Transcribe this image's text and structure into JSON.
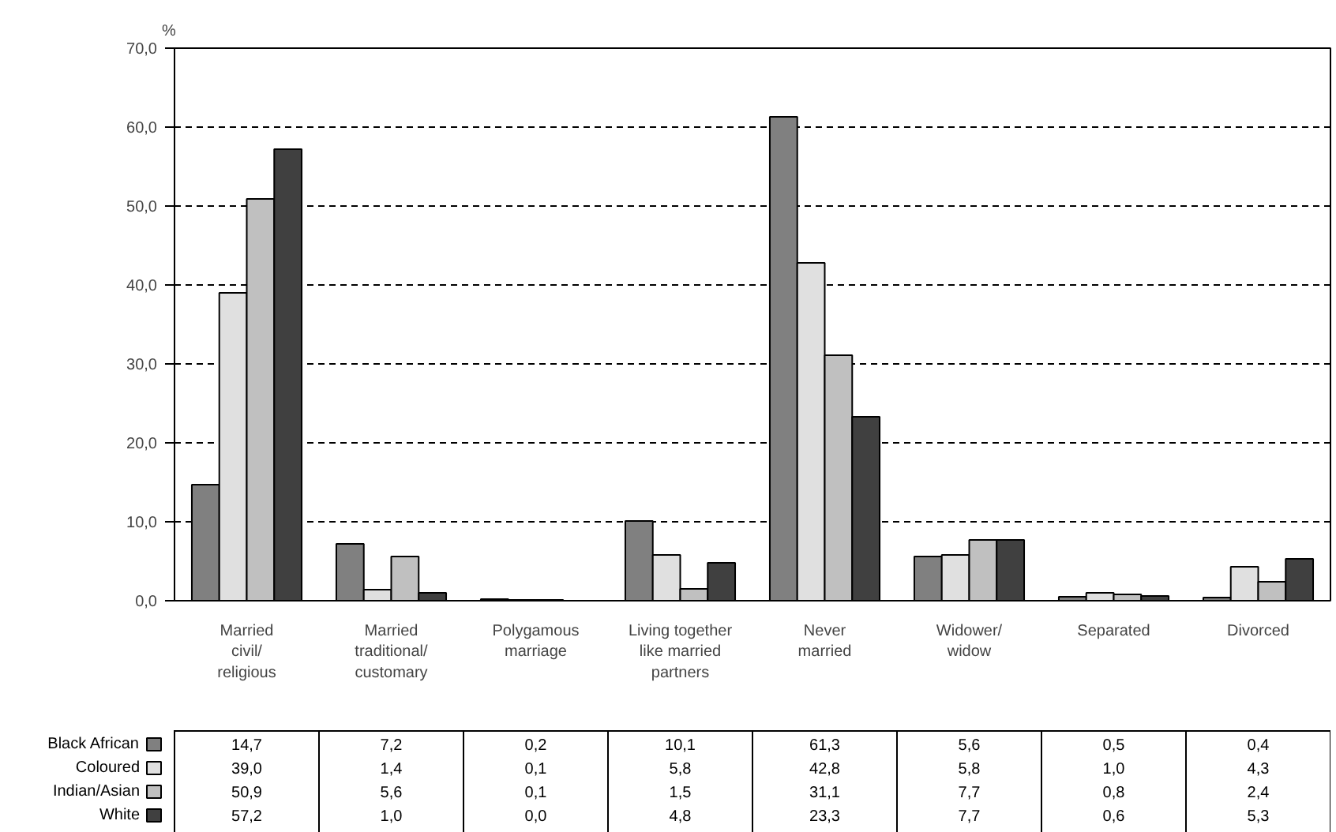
{
  "chart_data": {
    "type": "bar",
    "ylabel": "%",
    "categories": [
      "Married\ncivil/\nreligious",
      "Married\ntraditional/\ncustomary",
      "Polygamous\nmarriage",
      "Living together\nlike married\npartners",
      "Never\nmarried",
      "Widower/\nwidow",
      "Separated",
      "Divorced"
    ],
    "series": [
      {
        "name": "Black African",
        "color": "#808080",
        "values": [
          14.7,
          7.2,
          0.2,
          10.1,
          61.3,
          5.6,
          0.5,
          0.4
        ],
        "value_labels": [
          "14,7",
          "7,2",
          "0,2",
          "10,1",
          "61,3",
          "5,6",
          "0,5",
          "0,4"
        ]
      },
      {
        "name": "Coloured",
        "color": "#e0e0e0",
        "values": [
          39.0,
          1.4,
          0.1,
          5.8,
          42.8,
          5.8,
          1.0,
          4.3
        ],
        "value_labels": [
          "39,0",
          "1,4",
          "0,1",
          "5,8",
          "42,8",
          "5,8",
          "1,0",
          "4,3"
        ]
      },
      {
        "name": "Indian/Asian",
        "color": "#c0c0c0",
        "values": [
          50.9,
          5.6,
          0.1,
          1.5,
          31.1,
          7.7,
          0.8,
          2.4
        ],
        "value_labels": [
          "50,9",
          "5,6",
          "0,1",
          "1,5",
          "31,1",
          "7,7",
          "0,8",
          "2,4"
        ]
      },
      {
        "name": "White",
        "color": "#404040",
        "values": [
          57.2,
          1.0,
          0.0,
          4.8,
          23.3,
          7.7,
          0.6,
          5.3
        ],
        "value_labels": [
          "57,2",
          "1,0",
          "0,0",
          "4,8",
          "23,3",
          "7,7",
          "0,6",
          "5,3"
        ]
      }
    ],
    "ylim": [
      0,
      70
    ],
    "yticks": [
      {
        "value": 0,
        "label": "0,0"
      },
      {
        "value": 10,
        "label": "10,0"
      },
      {
        "value": 20,
        "label": "20,0"
      },
      {
        "value": 30,
        "label": "30,0"
      },
      {
        "value": 40,
        "label": "40,0"
      },
      {
        "value": 50,
        "label": "50,0"
      },
      {
        "value": 60,
        "label": "60,0"
      },
      {
        "value": 70,
        "label": "70,0"
      }
    ],
    "grid": "y",
    "legend": "bottom left"
  }
}
